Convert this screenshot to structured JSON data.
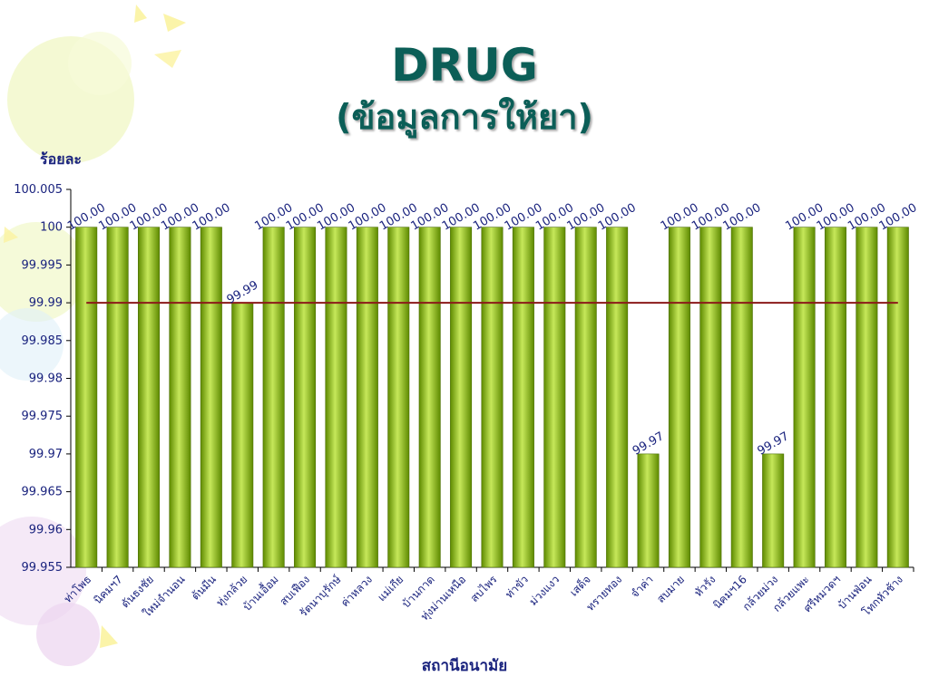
{
  "title": "DRUG",
  "subtitle": "(ข้อมูลการให้ยา)",
  "colors": {
    "bar": "#8fc31f",
    "bar_dark": "#5e8a00",
    "target_line": "#8b1a1a",
    "text": "#1a237e",
    "title": "#0b5e57"
  },
  "chart_data": {
    "type": "bar",
    "xlabel": "สถานีอนามัย",
    "ylabel": "ร้อยละ",
    "ylim": [
      99.955,
      100.005
    ],
    "yticks": [
      "100.005",
      "100",
      "99.995",
      "99.99",
      "99.985",
      "99.98",
      "99.975",
      "99.97",
      "99.965",
      "99.96",
      "99.955"
    ],
    "grid": false,
    "categories": [
      "ท่าโพธ",
      "นิคมฯ7",
      "ดันธงชัย",
      "ใหม่จำนอน",
      "ต้นมีน",
      "ทุ่งกล้วย",
      "บ้านเอื้อม",
      "สบเฟือง",
      "รัตนาบุรักษ์",
      "ค่าหลวง",
      "แม่เกีย",
      "บ้านกาด",
      "ทุ่งม่านเหนือ",
      "สบไพร",
      "ท่าขัว",
      "ม่วงแงว",
      "เสด็จ",
      "ทรายทอง",
      "จำค่า",
      "สบมาย",
      "หัวรัง",
      "นิคมฯ16",
      "กล้วยม่วง",
      "กล้วยแพะ",
      "ศรีหมวดฯ",
      "บ้านฟ่อน",
      "โทกหัวช้าง"
    ],
    "values": [
      100,
      100,
      100,
      100,
      100,
      99.99,
      100,
      100,
      100,
      100,
      100,
      100,
      100,
      100,
      100,
      100,
      100,
      100,
      99.97,
      100,
      100,
      100,
      99.97,
      100,
      100,
      100,
      100
    ],
    "data_labels": [
      "100.00",
      "100.00",
      "100.00",
      "100.00",
      "100.00",
      "99.99",
      "100.00",
      "100.00",
      "100.00",
      "100.00",
      "100.00",
      "100.00",
      "100.00",
      "100.00",
      "100.00",
      "100.00",
      "100.00",
      "100.00",
      "99.97",
      "100.00",
      "100.00",
      "100.00",
      "99.97",
      "100.00",
      "100.00",
      "100.00",
      "100.00"
    ],
    "target_line": 99.99
  }
}
